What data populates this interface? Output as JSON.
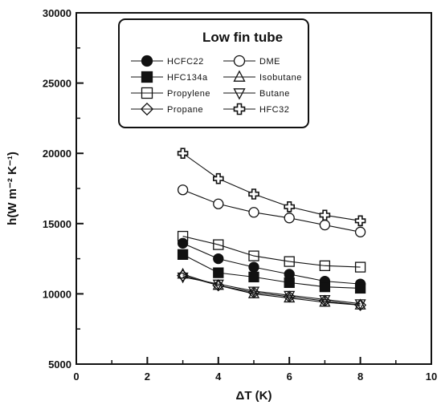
{
  "chart_data": {
    "type": "line",
    "title": "",
    "xlabel": "ΔT (K)",
    "ylabel": "h(W m⁻² K⁻¹)",
    "xlim": [
      0,
      10
    ],
    "ylim": [
      5000,
      30000
    ],
    "xticks": [
      "0",
      "2",
      "4",
      "6",
      "8",
      "10"
    ],
    "yticks": [
      "5000",
      "10000",
      "15000",
      "20000",
      "25000",
      "30000"
    ],
    "grid": false,
    "legend": {
      "title": "Low fin tube",
      "placement": "top-right",
      "columns": 2
    },
    "x": [
      3,
      4,
      5,
      6,
      7,
      8
    ],
    "series": [
      {
        "name": "HCFC22",
        "marker": "circle-filled",
        "values": [
          13600,
          12500,
          11900,
          11400,
          10900,
          10700
        ]
      },
      {
        "name": "DME",
        "marker": "circle-open",
        "values": [
          17400,
          16400,
          15800,
          15400,
          14900,
          14400
        ]
      },
      {
        "name": "HFC134a",
        "marker": "square-filled",
        "values": [
          12800,
          11500,
          11200,
          10800,
          10500,
          10400
        ]
      },
      {
        "name": "Isobutane",
        "marker": "triangle-up-open",
        "values": [
          11400,
          10600,
          10000,
          9700,
          9400,
          9200
        ]
      },
      {
        "name": "Propylene",
        "marker": "square-open",
        "values": [
          14100,
          13500,
          12700,
          12300,
          12000,
          11900
        ]
      },
      {
        "name": "Butane",
        "marker": "triangle-down-open",
        "values": [
          11200,
          10700,
          10200,
          9900,
          9600,
          9300
        ]
      },
      {
        "name": "Propane",
        "marker": "diamond-open",
        "values": [
          11300,
          10600,
          10100,
          9800,
          9500,
          9200
        ]
      },
      {
        "name": "HFC32",
        "marker": "cross-open",
        "values": [
          20000,
          18200,
          17100,
          16200,
          15600,
          15200
        ]
      }
    ]
  }
}
